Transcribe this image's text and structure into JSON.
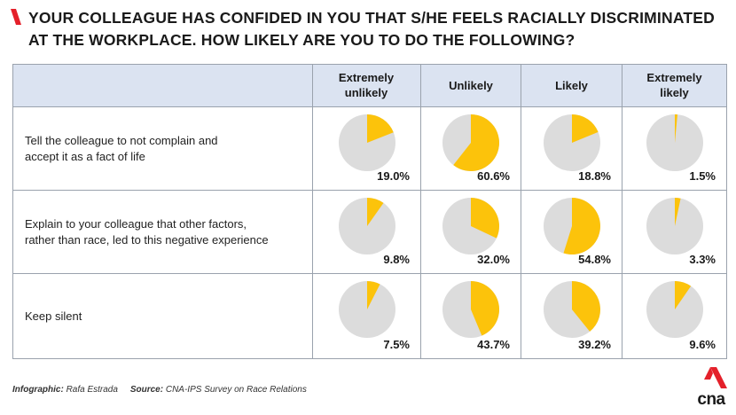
{
  "title": {
    "line1": "YOUR COLLEAGUE HAS CONFIDED IN YOU THAT S/HE FEELS RACIALLY DISCRIMINATED",
    "line2": "AT THE WORKPLACE. HOW LIKELY ARE YOU TO DO THE FOLLOWING?"
  },
  "colors": {
    "accent_red": "#e4202a",
    "slice_yellow": "#fcc30b",
    "pie_gray": "#dcdcdc",
    "header_bg": "#dbe3f1"
  },
  "chart_data": {
    "type": "pie",
    "categories": [
      "Extremely\nunlikely",
      "Unlikely",
      "Likely",
      "Extremely\nlikely"
    ],
    "rows": [
      {
        "label": "Tell the colleague to not complain and\naccept it as a fact of life",
        "values": [
          19.0,
          60.6,
          18.8,
          1.5
        ]
      },
      {
        "label": "Explain to your colleague that other factors,\nrather than race, led to this negative experience",
        "values": [
          9.8,
          32.0,
          54.8,
          3.3
        ]
      },
      {
        "label": "Keep silent",
        "values": [
          7.5,
          43.7,
          39.2,
          9.6
        ]
      }
    ],
    "value_labels": [
      [
        "19.0%",
        "60.6%",
        "18.8%",
        "1.5%"
      ],
      [
        "9.8%",
        "32.0%",
        "54.8%",
        "3.3%"
      ],
      [
        "7.5%",
        "43.7%",
        "39.2%",
        "9.6%"
      ]
    ]
  },
  "footer": {
    "infographic_label": "Infographic:",
    "infographic_value": "Rafa Estrada",
    "source_label": "Source:",
    "source_value": "CNA-IPS Survey on Race Relations"
  },
  "logo": {
    "text": "cna"
  }
}
